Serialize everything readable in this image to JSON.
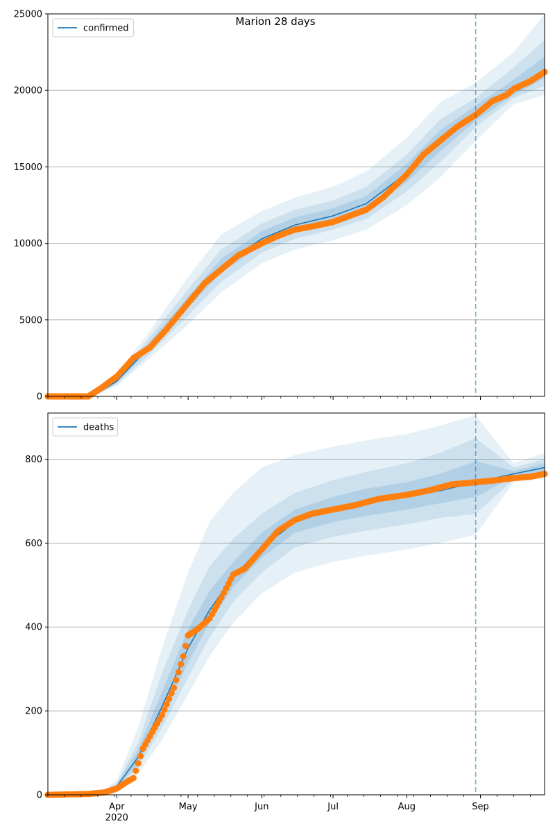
{
  "figure": {
    "title": "Marion 28 days",
    "colors": {
      "model_line": "#1f77b4",
      "band": "#1f77b4",
      "observed": "#ff7f0e",
      "grid": "#b0b0b0",
      "forecast_line": "#1f77b4"
    }
  },
  "chart_data": [
    {
      "type": "line",
      "legend": "confirmed",
      "legend_position": "top-left",
      "grid": "horizontal",
      "xlim": [
        "2020-03-03",
        "2020-09-28"
      ],
      "ylim": [
        0,
        25000
      ],
      "y_ticks": [
        0,
        5000,
        10000,
        15000,
        20000,
        25000
      ],
      "x_ticks": [
        {
          "date": "2020-04-01",
          "label": "Apr",
          "sublabel": "2020"
        },
        {
          "date": "2020-05-01",
          "label": "May",
          "sublabel": ""
        },
        {
          "date": "2020-06-01",
          "label": "Jun",
          "sublabel": ""
        },
        {
          "date": "2020-07-01",
          "label": "Jul",
          "sublabel": ""
        },
        {
          "date": "2020-08-01",
          "label": "Aug",
          "sublabel": ""
        },
        {
          "date": "2020-09-01",
          "label": "Sep",
          "sublabel": ""
        }
      ],
      "forecast_start": "2020-08-30",
      "series": [
        {
          "name": "confirmed",
          "role": "model",
          "x": [
            "2020-03-03",
            "2020-03-22",
            "2020-04-01",
            "2020-04-15",
            "2020-05-01",
            "2020-05-15",
            "2020-06-01",
            "2020-06-15",
            "2020-07-01",
            "2020-07-15",
            "2020-08-01",
            "2020-08-15",
            "2020-08-30",
            "2020-09-15",
            "2020-09-28"
          ],
          "y": [
            0,
            0,
            1000,
            3300,
            6100,
            8500,
            10300,
            11200,
            11800,
            12600,
            14600,
            16700,
            18500,
            20000,
            21300
          ]
        },
        {
          "role": "observed",
          "x": [
            "2020-03-03",
            "2020-03-20",
            "2020-03-25",
            "2020-04-01",
            "2020-04-08",
            "2020-04-15",
            "2020-04-22",
            "2020-05-01",
            "2020-05-08",
            "2020-05-15",
            "2020-05-22",
            "2020-06-01",
            "2020-06-08",
            "2020-06-15",
            "2020-06-22",
            "2020-07-01",
            "2020-07-08",
            "2020-07-15",
            "2020-07-22",
            "2020-08-01",
            "2020-08-08",
            "2020-08-15",
            "2020-08-22",
            "2020-08-30",
            "2020-09-06",
            "2020-09-12",
            "2020-09-15",
            "2020-09-22",
            "2020-09-28"
          ],
          "y": [
            0,
            0,
            500,
            1300,
            2500,
            3200,
            4400,
            6100,
            7400,
            8300,
            9200,
            10000,
            10500,
            10900,
            11100,
            11400,
            11800,
            12200,
            13000,
            14500,
            15800,
            16700,
            17600,
            18400,
            19300,
            19700,
            20100,
            20600,
            21200
          ]
        }
      ],
      "bands": [
        {
          "level": "outer",
          "x": [
            "2020-03-03",
            "2020-03-22",
            "2020-04-01",
            "2020-04-15",
            "2020-05-01",
            "2020-05-15",
            "2020-06-01",
            "2020-06-15",
            "2020-07-01",
            "2020-07-15",
            "2020-08-01",
            "2020-08-15",
            "2020-08-30",
            "2020-09-15",
            "2020-09-28"
          ],
          "lower": [
            0,
            0,
            700,
            2500,
            4700,
            6800,
            8700,
            9600,
            10200,
            10900,
            12500,
            14300,
            16700,
            19100,
            19700
          ],
          "upper": [
            0,
            0,
            1400,
            4300,
            7800,
            10600,
            12100,
            13000,
            13700,
            14700,
            16900,
            19200,
            20500,
            22500,
            25000
          ]
        },
        {
          "level": "middle",
          "x": [
            "2020-03-03",
            "2020-03-22",
            "2020-04-01",
            "2020-04-15",
            "2020-05-01",
            "2020-05-15",
            "2020-06-01",
            "2020-06-15",
            "2020-07-01",
            "2020-07-15",
            "2020-08-01",
            "2020-08-15",
            "2020-08-30",
            "2020-09-15",
            "2020-09-28"
          ],
          "lower": [
            0,
            0,
            800,
            2800,
            5300,
            7500,
            9400,
            10300,
            10900,
            11600,
            13400,
            15300,
            17600,
            19500,
            20300
          ],
          "upper": [
            0,
            0,
            1200,
            3900,
            7000,
            9600,
            11300,
            12200,
            12800,
            13700,
            15800,
            18100,
            19500,
            21500,
            23300
          ]
        },
        {
          "level": "inner",
          "x": [
            "2020-03-03",
            "2020-03-22",
            "2020-04-01",
            "2020-04-15",
            "2020-05-01",
            "2020-05-15",
            "2020-06-01",
            "2020-06-15",
            "2020-07-01",
            "2020-07-15",
            "2020-08-01",
            "2020-08-15",
            "2020-08-30",
            "2020-09-15",
            "2020-09-28"
          ],
          "lower": [
            0,
            0,
            900,
            3100,
            5800,
            8100,
            9900,
            10800,
            11400,
            12200,
            14000,
            16000,
            18000,
            19700,
            20800
          ],
          "upper": [
            0,
            0,
            1100,
            3600,
            6500,
            9000,
            10800,
            11700,
            12300,
            13100,
            15200,
            17400,
            19000,
            20700,
            22200
          ]
        }
      ]
    },
    {
      "type": "line",
      "legend": "deaths",
      "legend_position": "top-left",
      "grid": "horizontal",
      "xlim": [
        "2020-03-03",
        "2020-09-28"
      ],
      "ylim": [
        0,
        910
      ],
      "y_ticks": [
        0,
        200,
        400,
        600,
        800
      ],
      "x_ticks": [
        {
          "date": "2020-04-01",
          "label": "Apr",
          "sublabel": "2020"
        },
        {
          "date": "2020-05-01",
          "label": "May",
          "sublabel": ""
        },
        {
          "date": "2020-06-01",
          "label": "Jun",
          "sublabel": ""
        },
        {
          "date": "2020-07-01",
          "label": "Jul",
          "sublabel": ""
        },
        {
          "date": "2020-08-01",
          "label": "Aug",
          "sublabel": ""
        },
        {
          "date": "2020-09-01",
          "label": "Sep",
          "sublabel": ""
        }
      ],
      "forecast_start": "2020-08-30",
      "series": [
        {
          "name": "deaths",
          "role": "model",
          "x": [
            "2020-03-03",
            "2020-03-25",
            "2020-04-01",
            "2020-04-10",
            "2020-04-20",
            "2020-05-01",
            "2020-05-10",
            "2020-05-20",
            "2020-06-01",
            "2020-06-15",
            "2020-07-01",
            "2020-07-15",
            "2020-08-01",
            "2020-08-15",
            "2020-08-30",
            "2020-09-15",
            "2020-09-28"
          ],
          "y": [
            0,
            3,
            20,
            90,
            210,
            350,
            440,
            520,
            590,
            650,
            680,
            695,
            710,
            725,
            745,
            765,
            780
          ]
        },
        {
          "role": "observed",
          "x": [
            "2020-03-03",
            "2020-03-20",
            "2020-03-27",
            "2020-04-01",
            "2020-04-05",
            "2020-04-08",
            "2020-04-12",
            "2020-04-16",
            "2020-04-20",
            "2020-04-25",
            "2020-04-29",
            "2020-05-01",
            "2020-05-05",
            "2020-05-10",
            "2020-05-15",
            "2020-05-20",
            "2020-05-25",
            "2020-06-01",
            "2020-06-08",
            "2020-06-15",
            "2020-06-22",
            "2020-07-01",
            "2020-07-10",
            "2020-07-20",
            "2020-08-01",
            "2020-08-10",
            "2020-08-20",
            "2020-08-30",
            "2020-09-08",
            "2020-09-15",
            "2020-09-22",
            "2020-09-28"
          ],
          "y": [
            0,
            2,
            6,
            15,
            30,
            40,
            110,
            150,
            190,
            255,
            330,
            380,
            395,
            420,
            470,
            525,
            540,
            585,
            630,
            655,
            670,
            680,
            690,
            705,
            715,
            725,
            740,
            745,
            750,
            755,
            758,
            765
          ]
        }
      ],
      "bands": [
        {
          "level": "outer",
          "x": [
            "2020-03-03",
            "2020-03-25",
            "2020-04-01",
            "2020-04-10",
            "2020-04-20",
            "2020-05-01",
            "2020-05-10",
            "2020-05-20",
            "2020-06-01",
            "2020-06-15",
            "2020-07-01",
            "2020-07-15",
            "2020-08-01",
            "2020-08-15",
            "2020-08-30",
            "2020-09-15",
            "2020-09-28"
          ],
          "lower": [
            0,
            0,
            10,
            50,
            130,
            240,
            330,
            410,
            480,
            530,
            555,
            570,
            585,
            600,
            620,
            745,
            760
          ],
          "upper": [
            0,
            5,
            35,
            160,
            350,
            530,
            650,
            720,
            780,
            810,
            830,
            845,
            860,
            880,
            905,
            790,
            815
          ]
        },
        {
          "level": "middle",
          "x": [
            "2020-03-03",
            "2020-03-25",
            "2020-04-01",
            "2020-04-10",
            "2020-04-20",
            "2020-05-01",
            "2020-05-10",
            "2020-05-20",
            "2020-06-01",
            "2020-06-15",
            "2020-07-01",
            "2020-07-15",
            "2020-08-01",
            "2020-08-15",
            "2020-08-30",
            "2020-09-15",
            "2020-09-28"
          ],
          "lower": [
            0,
            1,
            14,
            65,
            160,
            280,
            375,
            460,
            530,
            590,
            615,
            630,
            645,
            660,
            670,
            752,
            768
          ],
          "upper": [
            0,
            4,
            28,
            125,
            290,
            440,
            545,
            610,
            670,
            720,
            750,
            770,
            790,
            815,
            850,
            780,
            800
          ]
        },
        {
          "level": "inner",
          "x": [
            "2020-03-03",
            "2020-03-25",
            "2020-04-01",
            "2020-04-10",
            "2020-04-20",
            "2020-05-01",
            "2020-05-10",
            "2020-05-20",
            "2020-06-01",
            "2020-06-15",
            "2020-07-01",
            "2020-07-15",
            "2020-08-01",
            "2020-08-15",
            "2020-08-30",
            "2020-09-15",
            "2020-09-28"
          ],
          "lower": [
            0,
            2,
            17,
            75,
            185,
            315,
            410,
            495,
            565,
            625,
            650,
            665,
            680,
            695,
            710,
            758,
            772
          ],
          "upper": [
            0,
            4,
            24,
            108,
            245,
            395,
            485,
            555,
            625,
            680,
            710,
            730,
            745,
            765,
            795,
            772,
            790
          ]
        }
      ]
    }
  ]
}
